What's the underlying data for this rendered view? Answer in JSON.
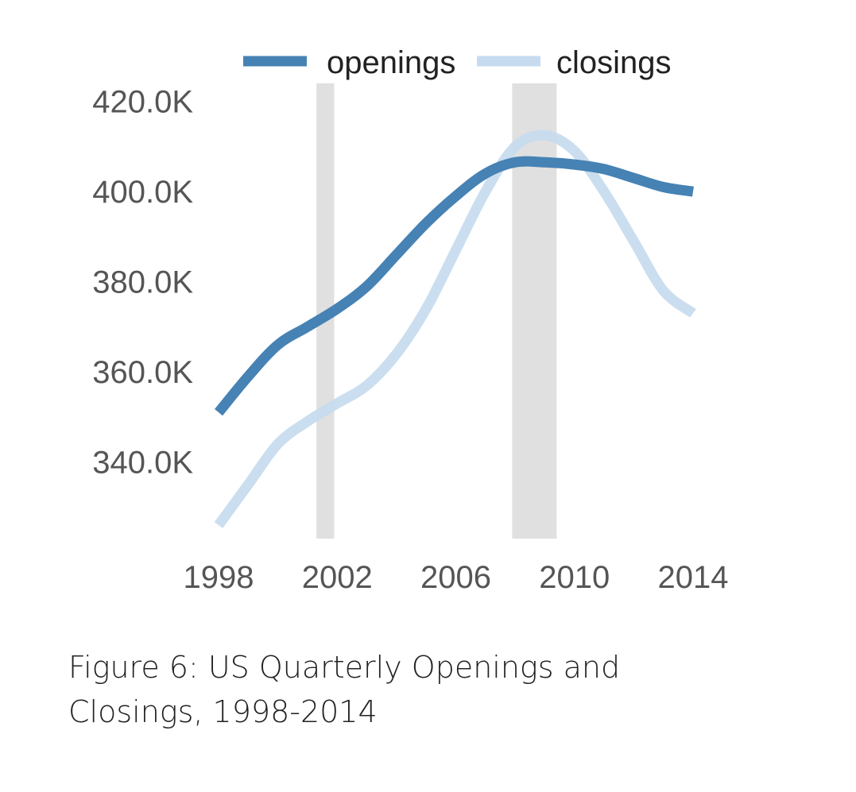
{
  "chart_data": {
    "type": "line",
    "x": [
      1998,
      1999,
      2000,
      2001,
      2002,
      2003,
      2004,
      2005,
      2006,
      2007,
      2008,
      2009,
      2010,
      2011,
      2012,
      2013,
      2014
    ],
    "series": [
      {
        "name": "openings",
        "color": "#4682b4",
        "values": [
          351,
          359,
          366,
          370,
          374,
          379,
          386,
          393,
          399,
          404,
          406.5,
          406.5,
          406,
          405,
          403,
          401,
          400
        ]
      },
      {
        "name": "closings",
        "color": "#c6dbef",
        "values": [
          326,
          335,
          344,
          349,
          353,
          357,
          364,
          374,
          387,
          400,
          410,
          412.5,
          409,
          400,
          389,
          378,
          373
        ]
      }
    ],
    "shaded_periods": [
      [
        2001.3,
        2001.9
      ],
      [
        2007.9,
        2009.4
      ]
    ],
    "yticks": [
      "340.0K",
      "360.0K",
      "380.0K",
      "400.0K",
      "420.0K"
    ],
    "xticks": [
      "1998",
      "2002",
      "2006",
      "2010",
      "2014"
    ],
    "ylim": [
      323,
      424
    ],
    "xlim": [
      1998,
      2014
    ],
    "grid": false,
    "legend_position": "top"
  },
  "caption": "Figure 6: US Quarterly Openings and Closings, 1998-2014"
}
